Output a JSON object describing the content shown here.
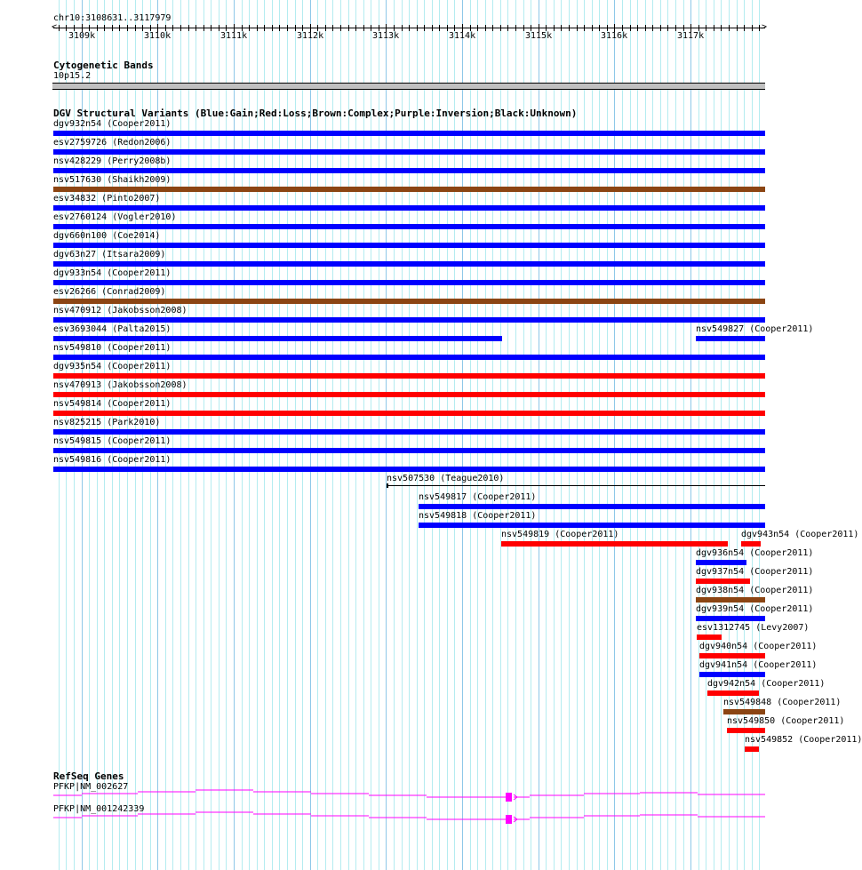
{
  "ruler": {
    "location": "chr10:3108631..3117979",
    "start": 3108631,
    "end": 3117979,
    "tick_labels": [
      "3109k",
      "3110k",
      "3111k",
      "3112k",
      "3113k",
      "3114k",
      "3115k",
      "3116k",
      "3117k"
    ]
  },
  "cytoband": {
    "title": "Cytogenetic Bands",
    "band": "10p15.2",
    "color": "#c0c0c0"
  },
  "dgv": {
    "title": "DGV Structural Variants (Blue:Gain;Red:Loss;Brown:Complex;Purple:Inversion;Black:Unknown)",
    "colors": {
      "gain": "#0000ff",
      "loss": "#ff0000",
      "complex": "#8b4513",
      "unknown": "#000000"
    },
    "features": [
      {
        "label": "dgv932n54 (Cooper2011)",
        "type": "gain",
        "start": 3108631,
        "end": 3117979,
        "row": 0
      },
      {
        "label": "esv2759726 (Redon2006)",
        "type": "gain",
        "start": 3108631,
        "end": 3117979,
        "row": 1
      },
      {
        "label": "nsv428229 (Perry2008b)",
        "type": "gain",
        "start": 3108631,
        "end": 3117979,
        "row": 2
      },
      {
        "label": "nsv517630 (Shaikh2009)",
        "type": "complex",
        "start": 3108631,
        "end": 3117979,
        "row": 3
      },
      {
        "label": "esv34832 (Pinto2007)",
        "type": "gain",
        "start": 3108631,
        "end": 3117979,
        "row": 4
      },
      {
        "label": "esv2760124 (Vogler2010)",
        "type": "gain",
        "start": 3108631,
        "end": 3117979,
        "row": 5
      },
      {
        "label": "dgv660n100 (Coe2014)",
        "type": "gain",
        "start": 3108631,
        "end": 3117979,
        "row": 6
      },
      {
        "label": "dgv63n27 (Itsara2009)",
        "type": "gain",
        "start": 3108631,
        "end": 3117979,
        "row": 7
      },
      {
        "label": "dgv933n54 (Cooper2011)",
        "type": "gain",
        "start": 3108631,
        "end": 3117979,
        "row": 8
      },
      {
        "label": "esv26266 (Conrad2009)",
        "type": "complex",
        "start": 3108631,
        "end": 3117979,
        "row": 9
      },
      {
        "label": "nsv470912 (Jakobsson2008)",
        "type": "gain",
        "start": 3108631,
        "end": 3117979,
        "row": 10
      },
      {
        "label": "esv3693044 (Palta2015)",
        "type": "gain",
        "start": 3108631,
        "end": 3114524,
        "row": 11
      },
      {
        "label": "nsv549827 (Cooper2011)",
        "type": "gain",
        "start": 3117068,
        "end": 3117979,
        "row": 11
      },
      {
        "label": "nsv549810 (Cooper2011)",
        "type": "gain",
        "start": 3108631,
        "end": 3117979,
        "row": 12
      },
      {
        "label": "dgv935n54 (Cooper2011)",
        "type": "loss",
        "start": 3108631,
        "end": 3117979,
        "row": 13
      },
      {
        "label": "nsv470913 (Jakobsson2008)",
        "type": "loss",
        "start": 3108631,
        "end": 3117979,
        "row": 14
      },
      {
        "label": "nsv549814 (Cooper2011)",
        "type": "loss",
        "start": 3108631,
        "end": 3117979,
        "row": 15
      },
      {
        "label": "nsv825215 (Park2010)",
        "type": "gain",
        "start": 3108631,
        "end": 3117979,
        "row": 16
      },
      {
        "label": "nsv549815 (Cooper2011)",
        "type": "gain",
        "start": 3108631,
        "end": 3117979,
        "row": 17
      },
      {
        "label": "nsv549816 (Cooper2011)",
        "type": "gain",
        "start": 3108631,
        "end": 3117979,
        "row": 18
      },
      {
        "label": "nsv507530 (Teague2010)",
        "type": "unknown",
        "start": 3113007,
        "end": 3117979,
        "row": 19
      },
      {
        "label": "nsv549817 (Cooper2011)",
        "type": "gain",
        "start": 3113427,
        "end": 3117979,
        "row": 20
      },
      {
        "label": "nsv549818 (Cooper2011)",
        "type": "gain",
        "start": 3113427,
        "end": 3117979,
        "row": 21
      },
      {
        "label": "nsv549819 (Cooper2011)",
        "type": "loss",
        "start": 3114513,
        "end": 3117489,
        "row": 22
      },
      {
        "label": "dgv943n54 (Cooper2011)",
        "type": "loss",
        "start": 3117664,
        "end": 3117920,
        "row": 22
      },
      {
        "label": "dgv936n54 (Cooper2011)",
        "type": "gain",
        "start": 3117068,
        "end": 3117734,
        "row": 23
      },
      {
        "label": "dgv937n54 (Cooper2011)",
        "type": "loss",
        "start": 3117068,
        "end": 3117780,
        "row": 24
      },
      {
        "label": "dgv938n54 (Cooper2011)",
        "type": "complex",
        "start": 3117068,
        "end": 3117979,
        "row": 25
      },
      {
        "label": "dgv939n54 (Cooper2011)",
        "type": "gain",
        "start": 3117068,
        "end": 3117979,
        "row": 26
      },
      {
        "label": "esv1312745 (Levy2007)",
        "type": "loss",
        "start": 3117080,
        "end": 3117407,
        "row": 27
      },
      {
        "label": "dgv940n54 (Cooper2011)",
        "type": "loss",
        "start": 3117115,
        "end": 3117979,
        "row": 28
      },
      {
        "label": "dgv941n54 (Cooper2011)",
        "type": "gain",
        "start": 3117115,
        "end": 3117979,
        "row": 29
      },
      {
        "label": "dgv942n54 (Cooper2011)",
        "type": "loss",
        "start": 3117220,
        "end": 3117897,
        "row": 30
      },
      {
        "label": "nsv549848 (Cooper2011)",
        "type": "complex",
        "start": 3117430,
        "end": 3117979,
        "row": 31
      },
      {
        "label": "nsv549850 (Cooper2011)",
        "type": "loss",
        "start": 3117477,
        "end": 3117979,
        "row": 32
      },
      {
        "label": "nsv549852 (Cooper2011)",
        "type": "loss",
        "start": 3117710,
        "end": 3117897,
        "row": 33
      }
    ]
  },
  "refseq": {
    "title": "RefSeq Genes",
    "color": "#ff00ff",
    "genes": [
      {
        "label": "PFKP|NM_002627"
      },
      {
        "label": "PFKP|NM_001242339"
      }
    ]
  }
}
